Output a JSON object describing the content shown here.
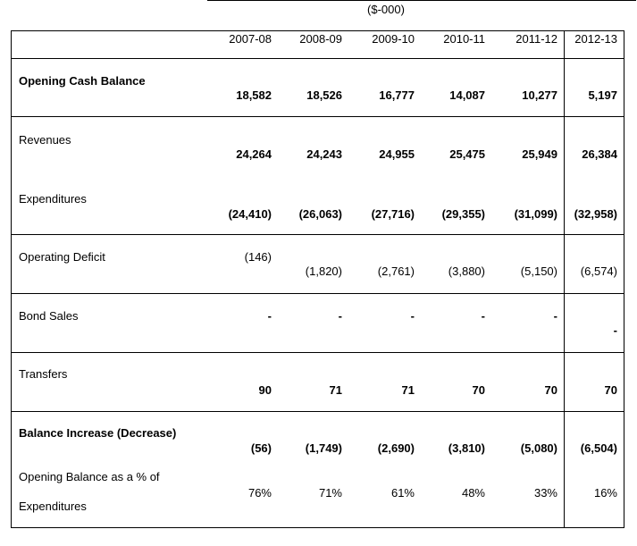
{
  "unit": "($-000)",
  "years": [
    "2007-08",
    "2008-09",
    "2009-10",
    "2010-11",
    "2011-12",
    "2012-13"
  ],
  "rows": {
    "opening_cash": {
      "label": "Opening Cash Balance",
      "values": [
        "18,582",
        "18,526",
        "16,777",
        "14,087",
        "10,277",
        "5,197"
      ]
    },
    "revenues": {
      "label": "Revenues",
      "values": [
        "24,264",
        "24,243",
        "24,955",
        "25,475",
        "25,949",
        "26,384"
      ]
    },
    "expenditures": {
      "label": "Expenditures",
      "values": [
        "(24,410)",
        "(26,063)",
        "(27,716)",
        "(29,355)",
        "(31,099)",
        "(32,958)"
      ]
    },
    "operating_deficit": {
      "label": "Operating Deficit",
      "values": [
        "(146)",
        "(1,820)",
        "(2,761)",
        "(3,880)",
        "(5,150)",
        "(6,574)"
      ]
    },
    "bond_sales": {
      "label": "Bond Sales",
      "values": [
        "-",
        "-",
        "-",
        "-",
        "-",
        "-"
      ]
    },
    "transfers": {
      "label": "Transfers",
      "values": [
        "90",
        "71",
        "71",
        "70",
        "70",
        "70"
      ]
    },
    "balance_change": {
      "label": "Balance Increase (Decrease)",
      "values": [
        "(56)",
        "(1,749)",
        "(2,690)",
        "(3,810)",
        "(5,080)",
        "(6,504)"
      ]
    },
    "opening_pct": {
      "label_line1": "Opening Balance as a % of",
      "label_line2": "Expenditures",
      "values": [
        "76%",
        "71%",
        "61%",
        "48%",
        "33%",
        "16%"
      ]
    }
  }
}
